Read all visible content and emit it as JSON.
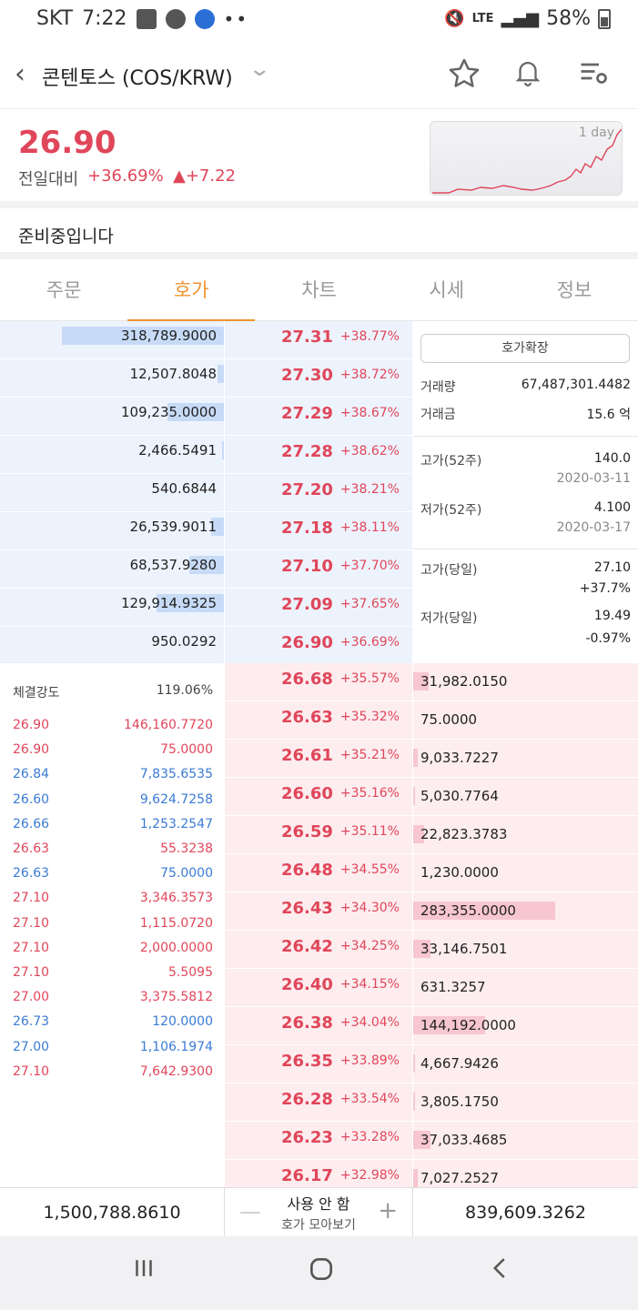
{
  "status_bar": {
    "carrier": "SKT",
    "time": "7:22",
    "battery": "58%",
    "network": "LTE"
  },
  "header": {
    "title": "콘텐토스 (COS/KRW)"
  },
  "price": {
    "current": "26.90",
    "change_label": "전일대비",
    "change_pct": "+36.69%",
    "change_abs": "▲+7.22"
  },
  "mini_chart": {
    "label": "1 day"
  },
  "notice": "준비중입니다",
  "tabs": [
    "주문",
    "호가",
    "차트",
    "시세",
    "정보"
  ],
  "asks": [
    {
      "qty": "318,789.9000",
      "price": "27.31",
      "rate": "+38.77%",
      "fill": 0.74
    },
    {
      "qty": "12,507.8048",
      "price": "27.30",
      "rate": "+38.72%",
      "fill": 0.03
    },
    {
      "qty": "109,235.0000",
      "price": "27.29",
      "rate": "+38.67%",
      "fill": 0.26
    },
    {
      "qty": "2,466.5491",
      "price": "27.28",
      "rate": "+38.62%",
      "fill": 0.01
    },
    {
      "qty": "540.6844",
      "price": "27.20",
      "rate": "+38.21%",
      "fill": 0.0
    },
    {
      "qty": "26,539.9011",
      "price": "27.18",
      "rate": "+38.11%",
      "fill": 0.06
    },
    {
      "qty": "68,537.9280",
      "price": "27.10",
      "rate": "+37.70%",
      "fill": 0.16
    },
    {
      "qty": "129,914.9325",
      "price": "27.09",
      "rate": "+37.65%",
      "fill": 0.31
    },
    {
      "qty": "950.0292",
      "price": "26.90",
      "rate": "+36.69%",
      "fill": 0.0
    }
  ],
  "bids": [
    {
      "price": "26.68",
      "rate": "+35.57%",
      "qty": "31,982.0150",
      "fill": 0.07
    },
    {
      "price": "26.63",
      "rate": "+35.32%",
      "qty": "75.0000",
      "fill": 0.0
    },
    {
      "price": "26.61",
      "rate": "+35.21%",
      "qty": "9,033.7227",
      "fill": 0.02
    },
    {
      "price": "26.60",
      "rate": "+35.16%",
      "qty": "5,030.7764",
      "fill": 0.01
    },
    {
      "price": "26.59",
      "rate": "+35.11%",
      "qty": "22,823.3783",
      "fill": 0.05
    },
    {
      "price": "26.48",
      "rate": "+34.55%",
      "qty": "1,230.0000",
      "fill": 0.0
    },
    {
      "price": "26.43",
      "rate": "+34.30%",
      "qty": "283,355.0000",
      "fill": 0.65
    },
    {
      "price": "26.42",
      "rate": "+34.25%",
      "qty": "33,146.7501",
      "fill": 0.08
    },
    {
      "price": "26.40",
      "rate": "+34.15%",
      "qty": "631.3257",
      "fill": 0.0
    },
    {
      "price": "26.38",
      "rate": "+34.04%",
      "qty": "144,192.0000",
      "fill": 0.33
    },
    {
      "price": "26.35",
      "rate": "+33.89%",
      "qty": "4,667.9426",
      "fill": 0.01
    },
    {
      "price": "26.28",
      "rate": "+33.54%",
      "qty": "3,805.1750",
      "fill": 0.01
    },
    {
      "price": "26.23",
      "rate": "+33.28%",
      "qty": "37,033.4685",
      "fill": 0.08
    },
    {
      "price": "26.17",
      "rate": "+32.98%",
      "qty": "7,027.2527",
      "fill": 0.02
    }
  ],
  "info": {
    "expand_label": "호가확장",
    "volume_label": "거래량",
    "volume": "67,487,301.4482",
    "amount_label": "거래금",
    "amount": "15.6 억",
    "high52_label": "고가(52주)",
    "high52": "140.0",
    "high52_date": "2020-03-11",
    "low52_label": "저가(52주)",
    "low52": "4.100",
    "low52_date": "2020-03-17",
    "high_day_label": "고가(당일)",
    "high_day": "27.10",
    "high_day_pct": "+37.7%",
    "low_day_label": "저가(당일)",
    "low_day": "19.49",
    "low_day_pct": "-0.97%"
  },
  "trades": {
    "strength_label": "체결강도",
    "strength": "119.06%",
    "rows": [
      {
        "price": "26.90",
        "qty": "146,160.7720",
        "side": "red"
      },
      {
        "price": "26.90",
        "qty": "75.0000",
        "side": "red"
      },
      {
        "price": "26.84",
        "qty": "7,835.6535",
        "side": "blue"
      },
      {
        "price": "26.60",
        "qty": "9,624.7258",
        "side": "blue"
      },
      {
        "price": "26.66",
        "qty": "1,253.2547",
        "side": "blue"
      },
      {
        "price": "26.63",
        "qty": "55.3238",
        "side": "red"
      },
      {
        "price": "26.63",
        "qty": "75.0000",
        "side": "blue"
      },
      {
        "price": "27.10",
        "qty": "3,346.3573",
        "side": "red"
      },
      {
        "price": "27.10",
        "qty": "1,115.0720",
        "side": "red"
      },
      {
        "price": "27.10",
        "qty": "2,000.0000",
        "side": "red"
      },
      {
        "price": "27.10",
        "qty": "5.5095",
        "side": "red"
      },
      {
        "price": "27.00",
        "qty": "3,375.5812",
        "side": "red"
      },
      {
        "price": "26.73",
        "qty": "120.0000",
        "side": "blue"
      },
      {
        "price": "27.00",
        "qty": "1,106.1974",
        "side": "blue"
      },
      {
        "price": "27.10",
        "qty": "7,642.9300",
        "side": "red"
      }
    ]
  },
  "summary": {
    "ask_total": "1,500,788.8610",
    "bid_total": "839,609.3262",
    "mode": "사용 안 함",
    "mode_sub": "호가 모아보기"
  },
  "colors": {
    "accent": "#f0932f",
    "up": "#e0465a",
    "down": "#3a7bd5"
  }
}
